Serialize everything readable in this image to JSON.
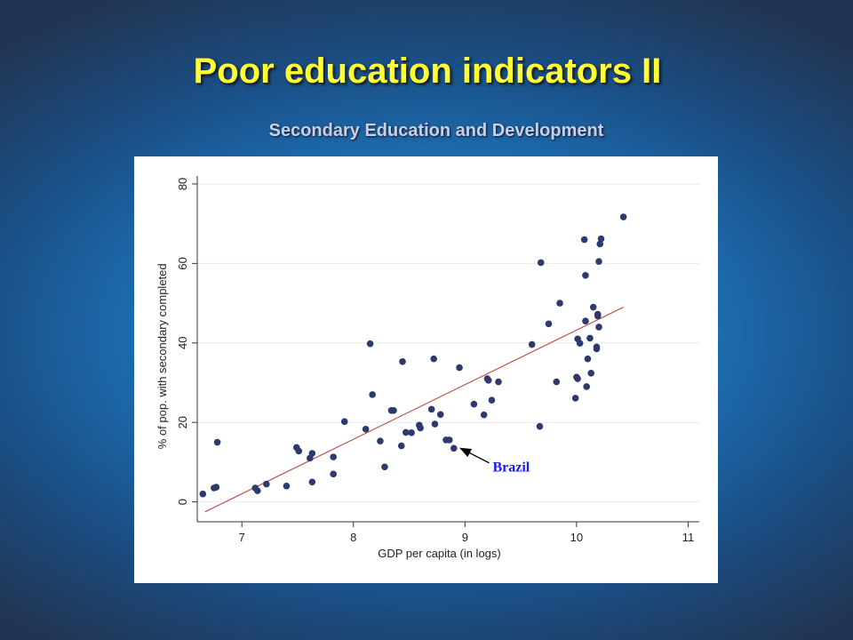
{
  "slide": {
    "title": "Poor education indicators II",
    "subtitle": "Secondary Education and Development"
  },
  "colors": {
    "title": "#ffff33",
    "subtitle": "#c8cfe6",
    "marker": "#2e3a6e",
    "fit_line": "#c0504d",
    "annotation": "#1a1aff"
  },
  "chart_data": {
    "type": "scatter",
    "xlabel": "GDP per capita (in logs)",
    "ylabel": "% of pop. with secondary completed",
    "xlim": [
      6.6,
      11.1
    ],
    "ylim": [
      -5,
      82
    ],
    "xticks": [
      7,
      8,
      9,
      10,
      11
    ],
    "yticks": [
      0,
      20,
      40,
      60,
      80
    ],
    "grid": "horizontal",
    "series": [
      {
        "points": [
          [
            6.65,
            2
          ],
          [
            6.75,
            3.5
          ],
          [
            6.77,
            3.7
          ],
          [
            6.78,
            15
          ],
          [
            7.12,
            3.5
          ],
          [
            7.14,
            2.8
          ],
          [
            7.22,
            4.5
          ],
          [
            7.4,
            4
          ],
          [
            7.49,
            13.7
          ],
          [
            7.51,
            12.8
          ],
          [
            7.61,
            11
          ],
          [
            7.63,
            12.2
          ],
          [
            7.63,
            5
          ],
          [
            7.82,
            11.3
          ],
          [
            7.82,
            7
          ],
          [
            7.92,
            20.2
          ],
          [
            8.11,
            18.3
          ],
          [
            8.15,
            39.8
          ],
          [
            8.17,
            27
          ],
          [
            8.24,
            15.3
          ],
          [
            8.28,
            8.8
          ],
          [
            8.34,
            23
          ],
          [
            8.36,
            23
          ],
          [
            8.43,
            14.1
          ],
          [
            8.44,
            35.3
          ],
          [
            8.47,
            17.5
          ],
          [
            8.52,
            17.4
          ],
          [
            8.59,
            19.3
          ],
          [
            8.6,
            18.6
          ],
          [
            8.7,
            23.3
          ],
          [
            8.72,
            36
          ],
          [
            8.73,
            19.6
          ],
          [
            8.78,
            22
          ],
          [
            8.83,
            15.6
          ],
          [
            8.86,
            15.6
          ],
          [
            8.9,
            13.5
          ],
          [
            8.95,
            33.8
          ],
          [
            9.08,
            24.6
          ],
          [
            9.17,
            21.9
          ],
          [
            9.2,
            31
          ],
          [
            9.21,
            30.6
          ],
          [
            9.24,
            25.6
          ],
          [
            9.3,
            30.2
          ],
          [
            9.6,
            39.6
          ],
          [
            9.67,
            19
          ],
          [
            9.68,
            60.2
          ],
          [
            9.75,
            44.8
          ],
          [
            9.82,
            30.2
          ],
          [
            9.85,
            50
          ],
          [
            9.99,
            26.1
          ],
          [
            10,
            31.4
          ],
          [
            10.01,
            31
          ],
          [
            10.01,
            41
          ],
          [
            10.03,
            39.9
          ],
          [
            10.07,
            66
          ],
          [
            10.08,
            45.5
          ],
          [
            10.08,
            57
          ],
          [
            10.09,
            29
          ],
          [
            10.1,
            36
          ],
          [
            10.12,
            41.2
          ],
          [
            10.13,
            32.4
          ],
          [
            10.15,
            49
          ],
          [
            10.18,
            39
          ],
          [
            10.18,
            38.5
          ],
          [
            10.19,
            46.8
          ],
          [
            10.19,
            47.2
          ],
          [
            10.2,
            44
          ],
          [
            10.2,
            60.5
          ],
          [
            10.21,
            64.9
          ],
          [
            10.22,
            66.2
          ],
          [
            10.42,
            71.7
          ]
        ]
      }
    ],
    "fit_line": [
      [
        6.67,
        -2.5
      ],
      [
        10.42,
        49
      ]
    ],
    "annotations": [
      {
        "text": "Brazil",
        "point": [
          8.92,
          13.5
        ],
        "label_at": [
          9.28,
          8.7
        ]
      }
    ]
  }
}
